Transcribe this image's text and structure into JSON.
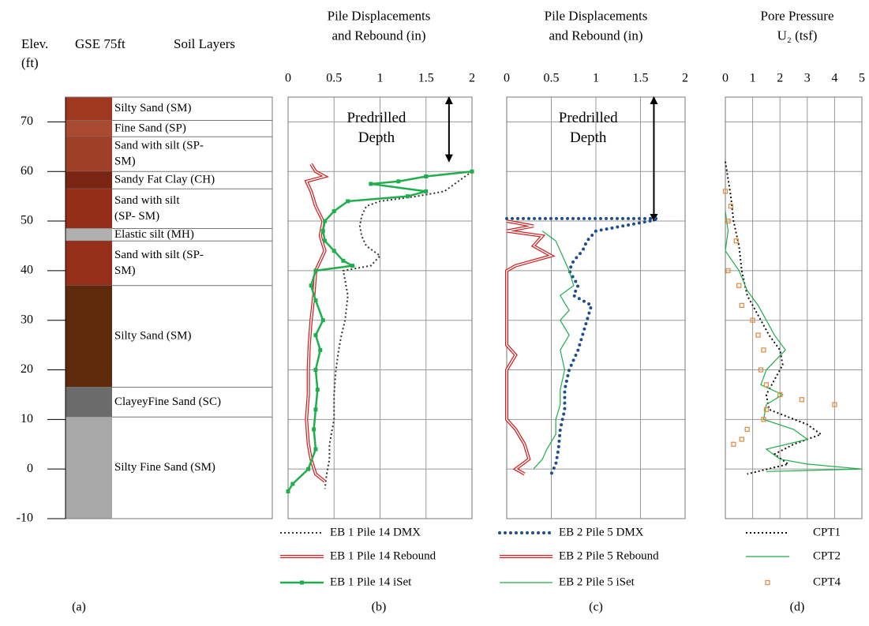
{
  "chart_data": [
    {
      "type": "column",
      "y_label": [
        "Elev.",
        "(ft)"
      ],
      "title": "GSE 75ft",
      "subtitle": "Soil Layers",
      "caption": "(a)",
      "ylim": [
        -10,
        75
      ],
      "yticks": [
        -10,
        0,
        10,
        20,
        30,
        40,
        50,
        60,
        70
      ],
      "layers": [
        {
          "top": 75,
          "bottom": 70.3,
          "label": [
            "Silty Sand (SM)"
          ],
          "color": "#a0381f"
        },
        {
          "top": 70.3,
          "bottom": 67,
          "label": [
            "Fine Sand (SP)"
          ],
          "color": "#a84a30"
        },
        {
          "top": 67,
          "bottom": 60,
          "label": [
            "Sand with silt (SP-",
            "SM)"
          ],
          "color": "#9e4027"
        },
        {
          "top": 60,
          "bottom": 56.5,
          "label": [
            "Sandy Fat Clay (CH)"
          ],
          "color": "#7a2414"
        },
        {
          "top": 56.5,
          "bottom": 48.5,
          "label": [
            "Sand with silt",
            "(SP- SM)"
          ],
          "color": "#952e18"
        },
        {
          "top": 48.5,
          "bottom": 46,
          "label": [
            "Elastic silt (MH)"
          ],
          "color": "#b0b0b0"
        },
        {
          "top": 46,
          "bottom": 37,
          "label": [
            "Sand with silt (SP-",
            "SM)"
          ],
          "color": "#962f1a"
        },
        {
          "top": 37,
          "bottom": 16.5,
          "label": [
            "Silty Sand (SM)"
          ],
          "color": "#5f2a0c"
        },
        {
          "top": 16.5,
          "bottom": 10.5,
          "label": [
            "ClayeyFine Sand (SC)"
          ],
          "color": "#6b6b6b"
        },
        {
          "top": 10.5,
          "bottom": -10,
          "label": [
            "Silty  Fine Sand (SM)"
          ],
          "color": "#a8a8a8"
        }
      ]
    },
    {
      "type": "line",
      "title": [
        "Pile Displacements",
        "and Rebound (in)"
      ],
      "caption": "(b)",
      "xlim": [
        0,
        2
      ],
      "xticks": [
        0,
        0.5,
        1,
        1.5,
        2
      ],
      "ylim": [
        -10,
        75
      ],
      "yticks": [
        -10,
        0,
        10,
        20,
        30,
        40,
        50,
        60,
        70
      ],
      "grid": true,
      "annotation": {
        "text": [
          "Predrilled",
          "Depth"
        ],
        "arrow_x": 1.75,
        "arrow_from": 75,
        "arrow_to": 62
      },
      "series": [
        {
          "name": "EB 1 Pile  14 DMX",
          "color": "#333333",
          "line": "dotted",
          "elevation": [
            60,
            58,
            56,
            55,
            54,
            53,
            51,
            49,
            47,
            45,
            43,
            41,
            40,
            38,
            35,
            30,
            27,
            24,
            20,
            15,
            10,
            5,
            2,
            -1,
            -4
          ],
          "values": [
            2.0,
            1.85,
            1.7,
            1.4,
            1.0,
            0.85,
            0.8,
            0.78,
            0.8,
            0.85,
            1.0,
            0.9,
            0.6,
            0.62,
            0.65,
            0.62,
            0.58,
            0.55,
            0.52,
            0.5,
            0.5,
            0.45,
            0.45,
            0.42,
            0.4
          ]
        },
        {
          "name": "EB 1 Pile  14 Rebound",
          "color": "#d42020",
          "line": "double",
          "elevation": [
            61.5,
            60,
            59,
            58,
            56,
            53,
            50,
            47,
            44,
            42,
            40,
            35,
            30,
            25,
            20,
            15,
            10,
            5,
            2,
            -1,
            -2.5
          ],
          "values": [
            0.25,
            0.3,
            0.4,
            0.2,
            0.25,
            0.3,
            0.38,
            0.35,
            0.4,
            0.35,
            0.3,
            0.28,
            0.25,
            0.23,
            0.22,
            0.22,
            0.2,
            0.22,
            0.25,
            0.3,
            0.4
          ]
        },
        {
          "name": "EB 1 Pile  14 iSet",
          "color": "#1fae4b",
          "line": "solid",
          "marker": "square",
          "elevation": [
            60,
            59,
            58,
            57.5,
            56,
            55,
            54,
            52,
            50,
            48,
            46,
            44,
            42,
            41,
            40,
            37,
            34,
            30,
            27,
            24,
            20,
            16,
            12,
            8,
            4,
            0,
            -3,
            -4.5
          ],
          "values": [
            2.0,
            1.5,
            1.2,
            0.9,
            1.5,
            1.3,
            0.65,
            0.5,
            0.4,
            0.38,
            0.4,
            0.5,
            0.6,
            0.7,
            0.3,
            0.25,
            0.3,
            0.38,
            0.3,
            0.35,
            0.3,
            0.32,
            0.3,
            0.28,
            0.3,
            0.22,
            0.05,
            0.0
          ]
        }
      ]
    },
    {
      "type": "line",
      "title": [
        "Pile Displacements",
        "and Rebound (in)"
      ],
      "caption": "(c)",
      "xlim": [
        0,
        2
      ],
      "xticks": [
        0,
        0.5,
        1,
        1.5,
        2
      ],
      "ylim": [
        -10,
        75
      ],
      "yticks": [
        -10,
        0,
        10,
        20,
        30,
        40,
        50,
        60,
        70
      ],
      "grid": true,
      "annotation": {
        "text": [
          "Predrilled",
          "Depth"
        ],
        "arrow_x": 1.65,
        "arrow_from": 75,
        "arrow_to": 50
      },
      "series": [
        {
          "name": "EB 2 Pile  5 DMX",
          "color": "#1f4e8c",
          "line": "dots",
          "elevation": [
            50.5,
            50.5,
            50,
            49,
            48,
            46,
            44,
            42,
            40,
            37,
            35,
            33,
            30,
            27,
            24,
            20,
            16,
            12,
            8,
            4,
            1,
            -1
          ],
          "values": [
            0.0,
            1.7,
            1.6,
            1.3,
            1.0,
            0.9,
            0.85,
            0.75,
            0.7,
            0.8,
            0.75,
            0.95,
            0.9,
            0.85,
            0.8,
            0.7,
            0.65,
            0.65,
            0.6,
            0.58,
            0.55,
            0.5
          ]
        },
        {
          "name": "EB 2 Pile  5 Rebound",
          "color": "#d42020",
          "line": "double",
          "elevation": [
            50,
            49,
            48,
            47,
            45,
            43,
            41,
            40,
            35,
            30,
            25,
            23,
            20,
            15,
            10,
            8,
            5,
            2,
            0,
            -1
          ],
          "values": [
            0.0,
            0.3,
            0.0,
            0.4,
            0.3,
            0.5,
            0.1,
            0.0,
            0.0,
            0.0,
            0.0,
            0.1,
            0.0,
            0.0,
            0.0,
            0.1,
            0.2,
            0.25,
            0.1,
            0.2
          ]
        },
        {
          "name": "EB 2 Pile  5 iSet",
          "color": "#1fae4b",
          "line": "thin",
          "elevation": [
            48,
            46,
            44,
            42,
            40,
            37,
            35,
            32,
            30,
            27,
            24,
            20,
            16,
            13,
            10,
            7,
            4,
            2,
            0
          ],
          "values": [
            0.4,
            0.55,
            0.6,
            0.65,
            0.7,
            0.75,
            0.6,
            0.7,
            0.6,
            0.7,
            0.6,
            0.65,
            0.6,
            0.6,
            0.55,
            0.55,
            0.45,
            0.4,
            0.3
          ]
        }
      ]
    },
    {
      "type": "line",
      "title": [
        "Pore Pressure",
        "U₂ (tsf)"
      ],
      "caption": "(d)",
      "xlim": [
        0,
        5
      ],
      "xticks": [
        0,
        1,
        2,
        3,
        4,
        5
      ],
      "ylim": [
        -10,
        75
      ],
      "yticks": [
        -10,
        0,
        10,
        20,
        30,
        40,
        50,
        60,
        70
      ],
      "grid": true,
      "series": [
        {
          "name": "CPT1",
          "color": "#111111",
          "line": "dotted",
          "elevation": [
            62,
            55,
            50,
            45,
            40,
            35,
            30,
            27,
            24,
            21,
            18,
            15,
            12,
            9,
            7,
            5,
            3,
            1,
            -1
          ],
          "values": [
            0.0,
            0.2,
            0.3,
            0.5,
            0.6,
            0.8,
            1.3,
            1.6,
            2.0,
            2.1,
            1.8,
            1.5,
            1.6,
            3.0,
            3.5,
            2.5,
            1.8,
            2.3,
            0.8
          ]
        },
        {
          "name": "CPT2",
          "color": "#1fae4b",
          "line": "thin",
          "elevation": [
            52,
            48,
            44,
            40,
            36,
            33,
            30,
            27,
            24,
            20,
            17,
            15,
            13,
            10,
            8,
            6,
            4,
            2,
            1,
            0,
            -0.5
          ],
          "values": [
            0.0,
            0.1,
            0.0,
            0.5,
            0.8,
            1.2,
            1.5,
            1.8,
            2.2,
            1.5,
            1.3,
            2.1,
            1.5,
            1.4,
            2.5,
            3.0,
            1.5,
            2.0,
            3.0,
            5.0,
            1.5
          ]
        },
        {
          "name": "CPT4",
          "color": "#e0904a",
          "line": "none",
          "marker": "open-square",
          "elevation": [
            56,
            53,
            50,
            46,
            40,
            37,
            33,
            30,
            27,
            24,
            20,
            17,
            15,
            14,
            13,
            12,
            10,
            8,
            6,
            5
          ],
          "values": [
            0.0,
            0.2,
            0.1,
            0.4,
            0.1,
            0.5,
            0.6,
            1.0,
            1.2,
            1.4,
            1.3,
            1.5,
            2.0,
            2.8,
            4.0,
            1.5,
            1.4,
            0.8,
            0.6,
            0.3
          ]
        }
      ]
    }
  ]
}
